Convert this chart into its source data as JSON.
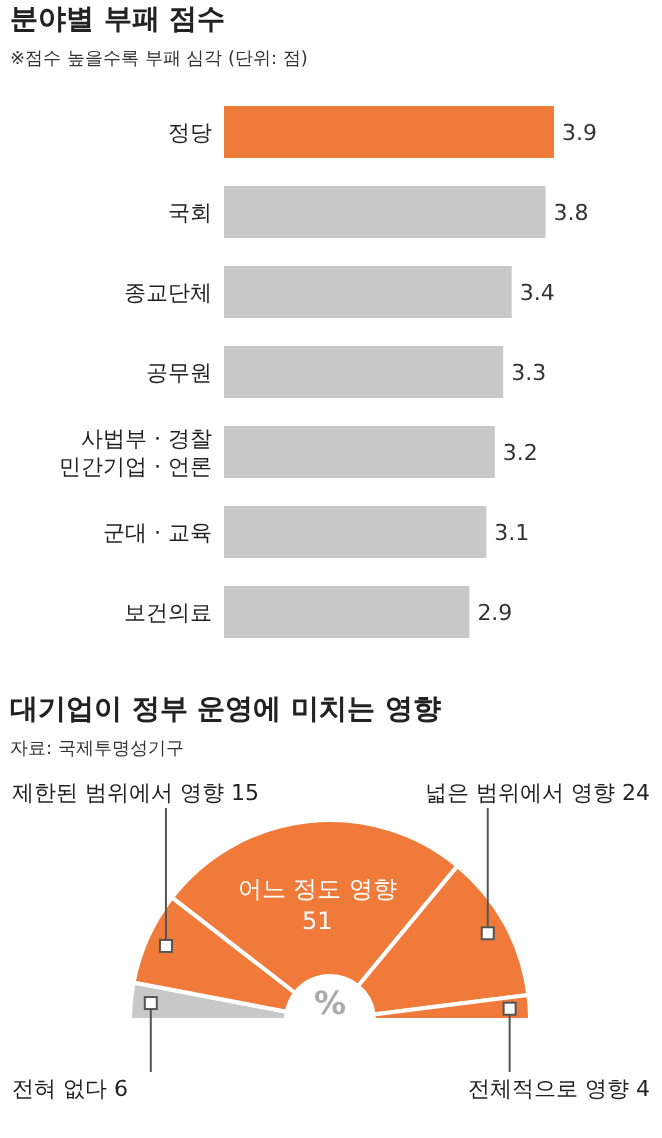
{
  "chart_data": [
    {
      "type": "bar",
      "orientation": "horizontal",
      "title": "분야별 부패 점수",
      "subtitle": "※점수 높을수록 부패 심각 (단위: 점)",
      "categories": [
        "정당",
        "국회",
        "종교단체",
        "공무원",
        "사법부 · 경찰\n민간기업 · 언론",
        "군대 · 교육",
        "보건의료"
      ],
      "values": [
        3.9,
        3.8,
        3.4,
        3.3,
        3.2,
        3.1,
        2.9
      ],
      "colors": [
        "#f07a3a",
        "#c8c8c8",
        "#c8c8c8",
        "#c8c8c8",
        "#c8c8c8",
        "#c8c8c8",
        "#c8c8c8"
      ],
      "data_labels": true
    },
    {
      "type": "donut",
      "title": "대기업이 정부 운영에 미치는 영향",
      "annotations": [
        "자료: 국제투명성기구",
        "%"
      ],
      "categories": [
        "전혀 없다",
        "제한된 범위에서 영향",
        "어느 정도 영향",
        "넓은 범위에서 영향",
        "전체적으로 영향"
      ],
      "values": [
        6,
        15,
        51,
        24,
        4
      ],
      "colors": [
        "#c8c8c8",
        "#f07a3a",
        "#f07a3a",
        "#f07a3a",
        "#f07a3a"
      ],
      "data_labels": true
    }
  ]
}
